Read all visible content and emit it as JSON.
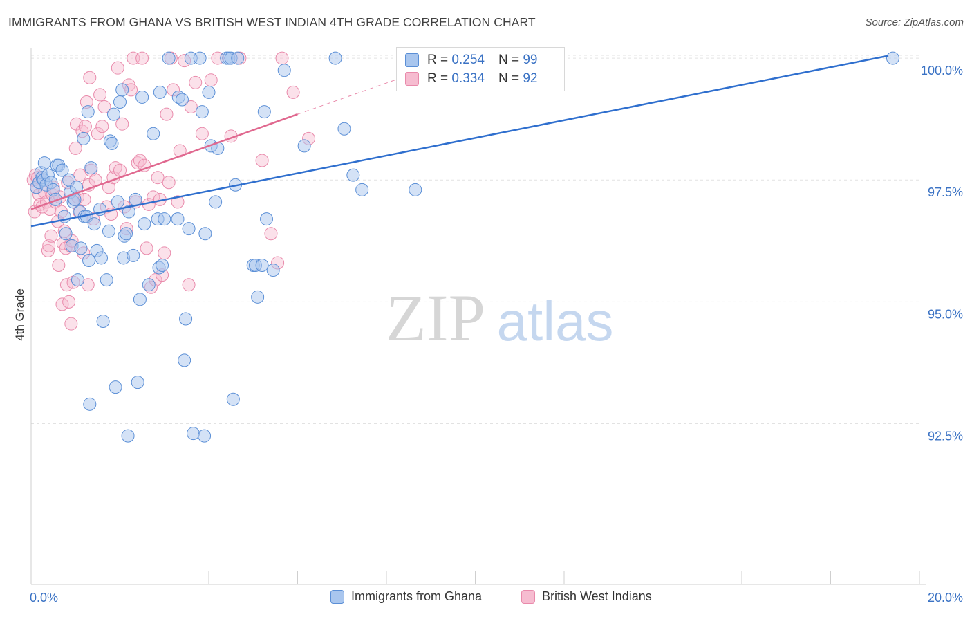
{
  "title": "IMMIGRANTS FROM GHANA VS BRITISH WEST INDIAN 4TH GRADE CORRELATION CHART",
  "source": "Source: ZipAtlas.com",
  "watermark": {
    "zip": "ZIP",
    "atlas": "atlas"
  },
  "colors": {
    "blue_fill": "#a9c6ee",
    "blue_stroke": "#5b8fd6",
    "blue_line": "#2f6fce",
    "pink_fill": "#f6bcd0",
    "pink_stroke": "#e98aab",
    "pink_line": "#e0688f",
    "tick_label": "#3a72c4",
    "grid": "#e2e2e2"
  },
  "legend_stats": [
    {
      "series": "Immigrants from Ghana",
      "r_label": "R =",
      "r_value": "0.254",
      "n_label": "N =",
      "n_value": "99"
    },
    {
      "series": "British West Indians",
      "r_label": "R =",
      "r_value": "0.334",
      "n_label": "N =",
      "n_value": "92"
    }
  ],
  "legend_bottom": [
    "Immigrants from Ghana",
    "British West Indians"
  ],
  "chart_data": {
    "type": "scatter",
    "title": "IMMIGRANTS FROM GHANA VS BRITISH WEST INDIAN 4TH GRADE CORRELATION CHART",
    "xlabel": "",
    "ylabel": "4th Grade",
    "xlim": [
      0.0,
      20.0
    ],
    "ylim": [
      89.2,
      100.2
    ],
    "x_tick_labels": [
      "0.0%",
      "20.0%"
    ],
    "y_ticks": [
      92.5,
      95.0,
      97.5,
      100.0
    ],
    "y_tick_labels": [
      "92.5%",
      "95.0%",
      "97.5%",
      "100.0%"
    ],
    "grid": true,
    "legend": "top-center",
    "series": [
      {
        "name": "Immigrants from Ghana",
        "R": 0.254,
        "N": 99,
        "trend": {
          "x": [
            0.0,
            19.3
          ],
          "y": [
            96.55,
            100.05
          ]
        },
        "points": [
          [
            0.12,
            97.35
          ],
          [
            0.18,
            97.45
          ],
          [
            0.22,
            97.65
          ],
          [
            0.25,
            97.55
          ],
          [
            0.28,
            97.5
          ],
          [
            0.3,
            97.85
          ],
          [
            0.34,
            97.4
          ],
          [
            0.38,
            97.6
          ],
          [
            0.45,
            97.45
          ],
          [
            0.5,
            97.3
          ],
          [
            0.55,
            97.1
          ],
          [
            0.58,
            97.8
          ],
          [
            0.62,
            97.8
          ],
          [
            0.7,
            97.7
          ],
          [
            0.75,
            96.75
          ],
          [
            0.78,
            96.4
          ],
          [
            0.85,
            97.5
          ],
          [
            0.88,
            97.25
          ],
          [
            0.92,
            96.15
          ],
          [
            0.95,
            97.05
          ],
          [
            0.98,
            97.1
          ],
          [
            1.02,
            97.35
          ],
          [
            1.05,
            95.45
          ],
          [
            1.1,
            96.85
          ],
          [
            1.12,
            96.1
          ],
          [
            1.18,
            98.35
          ],
          [
            1.2,
            96.75
          ],
          [
            1.25,
            96.75
          ],
          [
            1.28,
            98.9
          ],
          [
            1.3,
            95.85
          ],
          [
            1.32,
            92.9
          ],
          [
            1.35,
            97.75
          ],
          [
            1.42,
            96.6
          ],
          [
            1.48,
            96.05
          ],
          [
            1.55,
            96.9
          ],
          [
            1.58,
            95.9
          ],
          [
            1.62,
            94.6
          ],
          [
            1.7,
            95.45
          ],
          [
            1.75,
            96.45
          ],
          [
            1.78,
            98.3
          ],
          [
            1.82,
            98.25
          ],
          [
            1.86,
            98.85
          ],
          [
            1.9,
            93.25
          ],
          [
            1.95,
            97.05
          ],
          [
            2.0,
            99.1
          ],
          [
            2.05,
            99.35
          ],
          [
            2.08,
            95.9
          ],
          [
            2.1,
            96.35
          ],
          [
            2.14,
            96.4
          ],
          [
            2.18,
            92.25
          ],
          [
            2.2,
            96.85
          ],
          [
            2.3,
            95.95
          ],
          [
            2.35,
            97.1
          ],
          [
            2.4,
            93.35
          ],
          [
            2.45,
            95.05
          ],
          [
            2.5,
            99.2
          ],
          [
            2.55,
            96.6
          ],
          [
            2.65,
            95.35
          ],
          [
            2.75,
            98.45
          ],
          [
            2.85,
            96.7
          ],
          [
            2.88,
            95.7
          ],
          [
            2.9,
            99.3
          ],
          [
            2.95,
            95.75
          ],
          [
            3.0,
            96.7
          ],
          [
            3.1,
            100.0
          ],
          [
            3.3,
            96.7
          ],
          [
            3.32,
            99.2
          ],
          [
            3.4,
            99.15
          ],
          [
            3.45,
            93.8
          ],
          [
            3.48,
            94.65
          ],
          [
            3.55,
            96.5
          ],
          [
            3.6,
            100.0
          ],
          [
            3.65,
            92.3
          ],
          [
            3.8,
            100.0
          ],
          [
            3.85,
            98.9
          ],
          [
            3.9,
            92.25
          ],
          [
            3.92,
            96.4
          ],
          [
            4.0,
            99.3
          ],
          [
            4.05,
            98.2
          ],
          [
            4.15,
            97.05
          ],
          [
            4.2,
            98.15
          ],
          [
            4.4,
            100.0
          ],
          [
            4.45,
            100.0
          ],
          [
            4.5,
            100.0
          ],
          [
            4.55,
            93.0
          ],
          [
            4.6,
            97.4
          ],
          [
            4.65,
            100.0
          ],
          [
            5.0,
            95.75
          ],
          [
            5.05,
            95.75
          ],
          [
            5.1,
            95.1
          ],
          [
            5.2,
            95.75
          ],
          [
            5.25,
            98.9
          ],
          [
            5.3,
            96.7
          ],
          [
            5.45,
            95.65
          ],
          [
            5.7,
            99.75
          ],
          [
            6.15,
            98.2
          ],
          [
            6.85,
            100.0
          ],
          [
            7.05,
            98.55
          ],
          [
            7.25,
            97.6
          ],
          [
            7.45,
            97.3
          ],
          [
            8.65,
            97.3
          ],
          [
            19.4,
            100.0
          ]
        ]
      },
      {
        "name": "British West Indians",
        "R": 0.334,
        "N": 92,
        "trend": {
          "x": [
            0.0,
            6.0
          ],
          "y": [
            96.9,
            98.85
          ]
        },
        "trend_extension": {
          "x": [
            6.0,
            8.5
          ],
          "y": [
            98.85,
            99.65
          ]
        },
        "points": [
          [
            0.05,
            97.5
          ],
          [
            0.08,
            96.85
          ],
          [
            0.1,
            97.6
          ],
          [
            0.12,
            97.35
          ],
          [
            0.15,
            97.55
          ],
          [
            0.18,
            97.2
          ],
          [
            0.2,
            97.0
          ],
          [
            0.25,
            96.95
          ],
          [
            0.3,
            97.25
          ],
          [
            0.35,
            97.05
          ],
          [
            0.38,
            96.05
          ],
          [
            0.4,
            96.15
          ],
          [
            0.42,
            96.9
          ],
          [
            0.45,
            96.35
          ],
          [
            0.48,
            97.2
          ],
          [
            0.5,
            97.35
          ],
          [
            0.55,
            97.05
          ],
          [
            0.6,
            96.65
          ],
          [
            0.62,
            95.75
          ],
          [
            0.65,
            97.15
          ],
          [
            0.68,
            96.85
          ],
          [
            0.7,
            94.95
          ],
          [
            0.72,
            96.2
          ],
          [
            0.75,
            96.45
          ],
          [
            0.78,
            96.1
          ],
          [
            0.8,
            95.35
          ],
          [
            0.82,
            97.45
          ],
          [
            0.85,
            95.0
          ],
          [
            0.88,
            96.15
          ],
          [
            0.9,
            94.55
          ],
          [
            0.92,
            96.25
          ],
          [
            0.95,
            95.4
          ],
          [
            0.98,
            97.1
          ],
          [
            1.0,
            98.15
          ],
          [
            1.02,
            98.65
          ],
          [
            1.05,
            97.15
          ],
          [
            1.08,
            96.85
          ],
          [
            1.1,
            97.6
          ],
          [
            1.15,
            98.5
          ],
          [
            1.18,
            96.0
          ],
          [
            1.2,
            97.1
          ],
          [
            1.22,
            98.6
          ],
          [
            1.25,
            99.1
          ],
          [
            1.28,
            95.35
          ],
          [
            1.3,
            97.4
          ],
          [
            1.32,
            99.6
          ],
          [
            1.35,
            97.7
          ],
          [
            1.4,
            96.7
          ],
          [
            1.45,
            97.5
          ],
          [
            1.5,
            98.45
          ],
          [
            1.55,
            99.25
          ],
          [
            1.6,
            98.6
          ],
          [
            1.65,
            99.0
          ],
          [
            1.7,
            96.95
          ],
          [
            1.75,
            97.35
          ],
          [
            1.8,
            96.8
          ],
          [
            1.85,
            97.55
          ],
          [
            1.9,
            97.75
          ],
          [
            1.95,
            99.8
          ],
          [
            2.0,
            97.7
          ],
          [
            2.05,
            98.65
          ],
          [
            2.1,
            96.95
          ],
          [
            2.15,
            96.5
          ],
          [
            2.2,
            99.45
          ],
          [
            2.25,
            99.35
          ],
          [
            2.3,
            100.0
          ],
          [
            2.35,
            97.05
          ],
          [
            2.4,
            97.85
          ],
          [
            2.45,
            97.9
          ],
          [
            2.5,
            100.0
          ],
          [
            2.55,
            97.8
          ],
          [
            2.6,
            96.1
          ],
          [
            2.65,
            97.0
          ],
          [
            2.7,
            95.3
          ],
          [
            2.75,
            97.15
          ],
          [
            2.8,
            95.45
          ],
          [
            2.85,
            97.55
          ],
          [
            2.9,
            97.1
          ],
          [
            2.95,
            95.55
          ],
          [
            3.0,
            96.0
          ],
          [
            3.05,
            98.85
          ],
          [
            3.1,
            97.45
          ],
          [
            3.15,
            100.0
          ],
          [
            3.2,
            99.35
          ],
          [
            3.3,
            97.05
          ],
          [
            3.35,
            98.1
          ],
          [
            3.45,
            99.95
          ],
          [
            3.55,
            95.35
          ],
          [
            3.6,
            99.0
          ],
          [
            3.7,
            99.5
          ],
          [
            3.85,
            98.45
          ],
          [
            4.05,
            99.55
          ],
          [
            4.2,
            100.0
          ],
          [
            4.5,
            98.4
          ],
          [
            4.7,
            100.0
          ],
          [
            5.2,
            97.9
          ],
          [
            5.4,
            96.4
          ],
          [
            5.55,
            95.8
          ],
          [
            5.65,
            100.0
          ],
          [
            5.9,
            99.3
          ],
          [
            6.25,
            98.35
          ]
        ]
      }
    ]
  }
}
